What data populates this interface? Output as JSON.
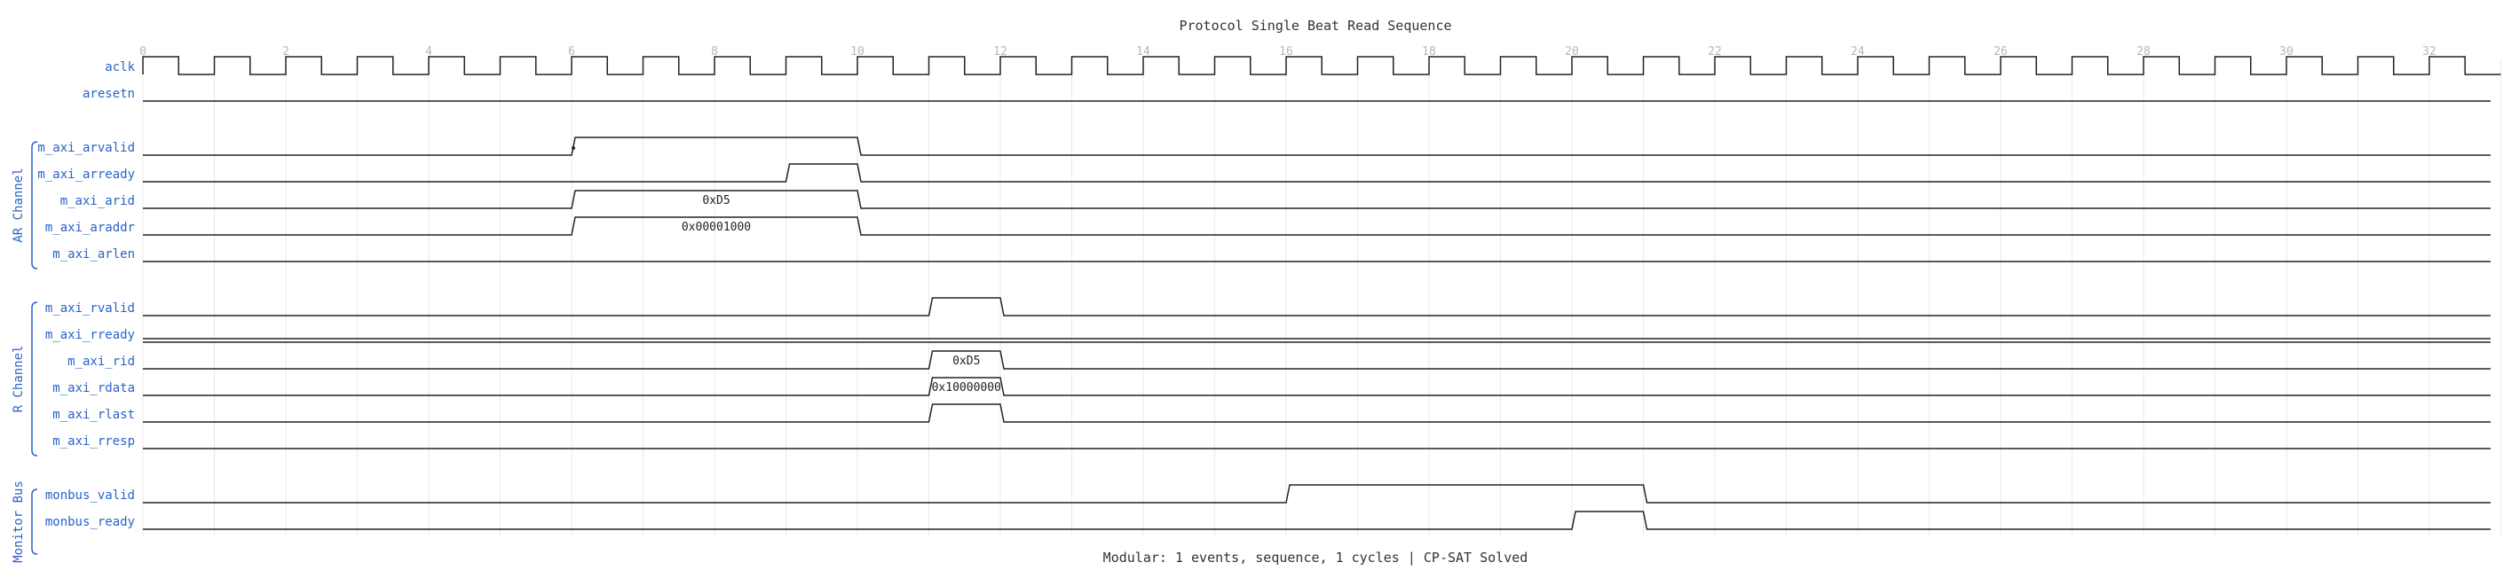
{
  "title": "Protocol Single Beat Read Sequence",
  "footer": "Modular: 1 events, sequence, 1 cycles | CP-SAT Solved",
  "cycles": 33,
  "tick_labels": [
    "0",
    "2",
    "4",
    "6",
    "8",
    "10",
    "12",
    "14",
    "16",
    "18",
    "20",
    "22",
    "24",
    "26",
    "28",
    "30",
    "32"
  ],
  "clock": {
    "name": "aclk"
  },
  "signals": [
    {
      "name": "aresetn",
      "type": "bit",
      "high": []
    },
    {
      "name": "m_axi_arvalid",
      "type": "bit",
      "high": [
        [
          6,
          10
        ]
      ],
      "group": 0,
      "marker_at": 6
    },
    {
      "name": "m_axi_arready",
      "type": "bit",
      "high": [
        [
          9,
          10
        ]
      ],
      "group": 0
    },
    {
      "name": "m_axi_arid",
      "type": "bus",
      "segments": [
        {
          "from": 6,
          "to": 10,
          "text": "0xD5"
        }
      ],
      "group": 0
    },
    {
      "name": "m_axi_araddr",
      "type": "bus",
      "segments": [
        {
          "from": 6,
          "to": 10,
          "text": "0x00001000"
        }
      ],
      "group": 0
    },
    {
      "name": "m_axi_arlen",
      "type": "bit",
      "high": [],
      "group": 0
    },
    {
      "name": "m_axi_rvalid",
      "type": "bit",
      "high": [
        [
          11,
          12
        ]
      ],
      "group": 1
    },
    {
      "name": "m_axi_rready",
      "type": "bit",
      "high": [
        [
          0,
          33
        ]
      ],
      "group": 1
    },
    {
      "name": "m_axi_rid",
      "type": "bus",
      "segments": [
        {
          "from": 11,
          "to": 12,
          "text": "0xD5"
        }
      ],
      "group": 1
    },
    {
      "name": "m_axi_rdata",
      "type": "bus",
      "segments": [
        {
          "from": 11,
          "to": 12,
          "text": "0x10000000"
        }
      ],
      "group": 1
    },
    {
      "name": "m_axi_rlast",
      "type": "bit",
      "high": [
        [
          11,
          12
        ]
      ],
      "group": 1
    },
    {
      "name": "m_axi_rresp",
      "type": "bit",
      "high": [],
      "group": 1
    },
    {
      "name": "monbus_valid",
      "type": "bit",
      "high": [
        [
          16,
          21
        ]
      ],
      "group": 2
    },
    {
      "name": "monbus_ready",
      "type": "bit",
      "high": [
        [
          20,
          21
        ]
      ],
      "group": 2
    }
  ],
  "groups": [
    {
      "name": "AR Channel"
    },
    {
      "name": "R Channel"
    },
    {
      "name": "Monitor Bus"
    }
  ]
}
